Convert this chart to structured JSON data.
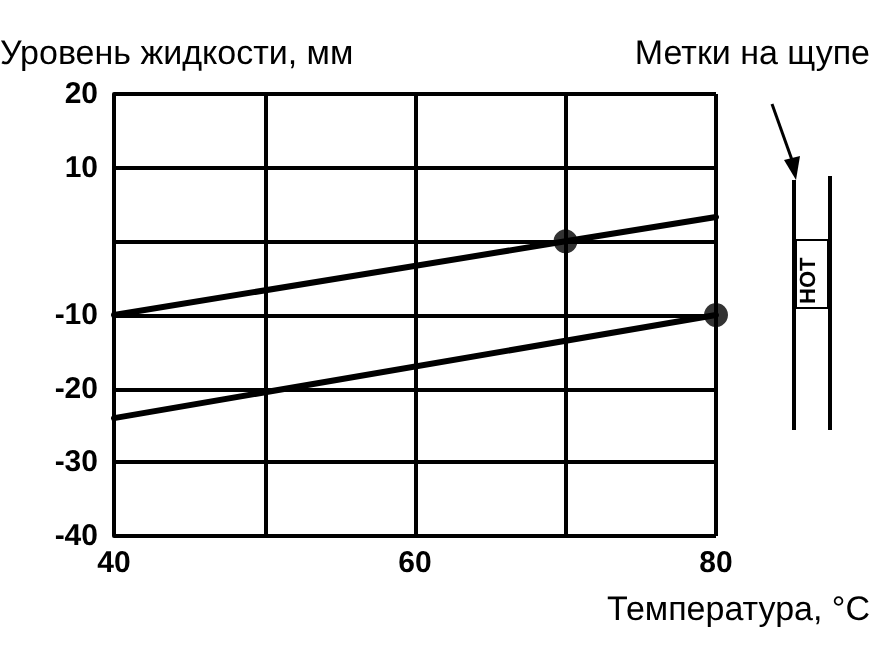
{
  "chart_data": {
    "type": "line",
    "ylabel": "Уровень жидкости, мм",
    "xlabel": "Температура, °C",
    "annotations": [
      "Метки на щупе",
      "HOT"
    ],
    "xlim": [
      40,
      80
    ],
    "xticks": [
      40,
      {
        "value": 50,
        "label": null
      },
      60,
      {
        "value": 70,
        "label": null
      },
      80
    ],
    "ylim": [
      -40,
      20
    ],
    "yticks": [
      -40,
      -30,
      -20,
      -10,
      {
        "value": 0,
        "label": null
      },
      10,
      20
    ],
    "grid": true,
    "line_style": "solid",
    "marker": "none",
    "series": [
      {
        "color": "#000000",
        "x": [
          40,
          70,
          80
        ],
        "values": [
          -10,
          0,
          3.3
        ]
      },
      {
        "color": "#000000",
        "x": [
          40,
          80
        ],
        "values": [
          -24,
          -10
        ]
      },
      {
        "type": "scatter",
        "marker": "circle",
        "color": "#000000",
        "x": [
          70,
          80
        ],
        "values": [
          0,
          -10
        ]
      }
    ]
  }
}
